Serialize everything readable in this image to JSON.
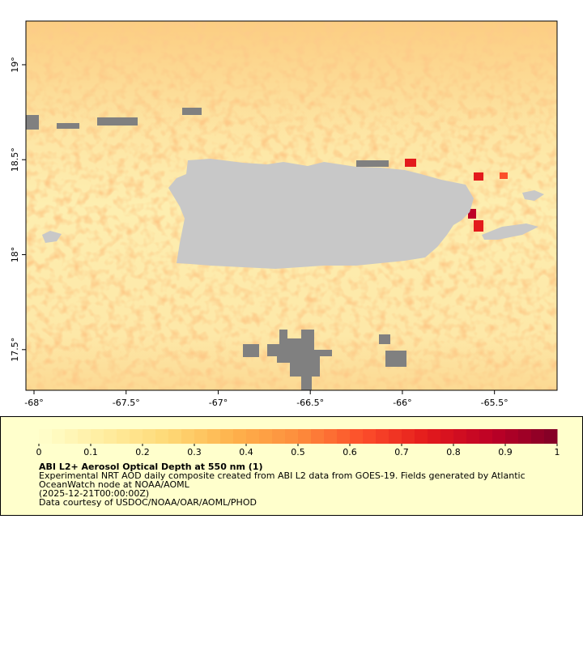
{
  "chart_data": {
    "type": "map",
    "xlim": [
      -68.044,
      -65.16
    ],
    "ylim": [
      17.286,
      19.23
    ],
    "xticks": [
      {
        "value": -68,
        "label": "-68°"
      },
      {
        "value": -67.5,
        "label": "-67.5°"
      },
      {
        "value": -67,
        "label": "-67°"
      },
      {
        "value": -66.5,
        "label": "-66.5°"
      },
      {
        "value": -66,
        "label": "-66°"
      },
      {
        "value": -65.5,
        "label": "-65.5°"
      }
    ],
    "yticks": [
      {
        "value": 17.5,
        "label": "17.5°"
      },
      {
        "value": 18,
        "label": "18°"
      },
      {
        "value": 18.5,
        "label": "18.5°"
      },
      {
        "value": 19,
        "label": "19°"
      }
    ],
    "colorbar": {
      "lim": [
        0,
        1
      ],
      "ticks": [
        0,
        0.1,
        0.2,
        0.3,
        0.4,
        0.5,
        0.6,
        0.7,
        0.8,
        0.9,
        1
      ],
      "colors": [
        "#ffffcc",
        "#ffeda0",
        "#fed976",
        "#feb24c",
        "#fd8d3c",
        "#fc4e2a",
        "#e31a1c",
        "#bd0026",
        "#800026"
      ]
    },
    "title": "ABI L2+ Aerosol Optical Depth at 550 nm (1)",
    "notes": [
      "Experimental NRT AOD daily composite created from ABI L2 data from GOES-19. Fields generated by Atlantic",
      "OceanWatch node at NOAA/AOML",
      "(2025-12-21T00:00:00Z)",
      "Data courtesy of USDOC/NOAA/OAR/AOML/PHOD"
    ]
  }
}
